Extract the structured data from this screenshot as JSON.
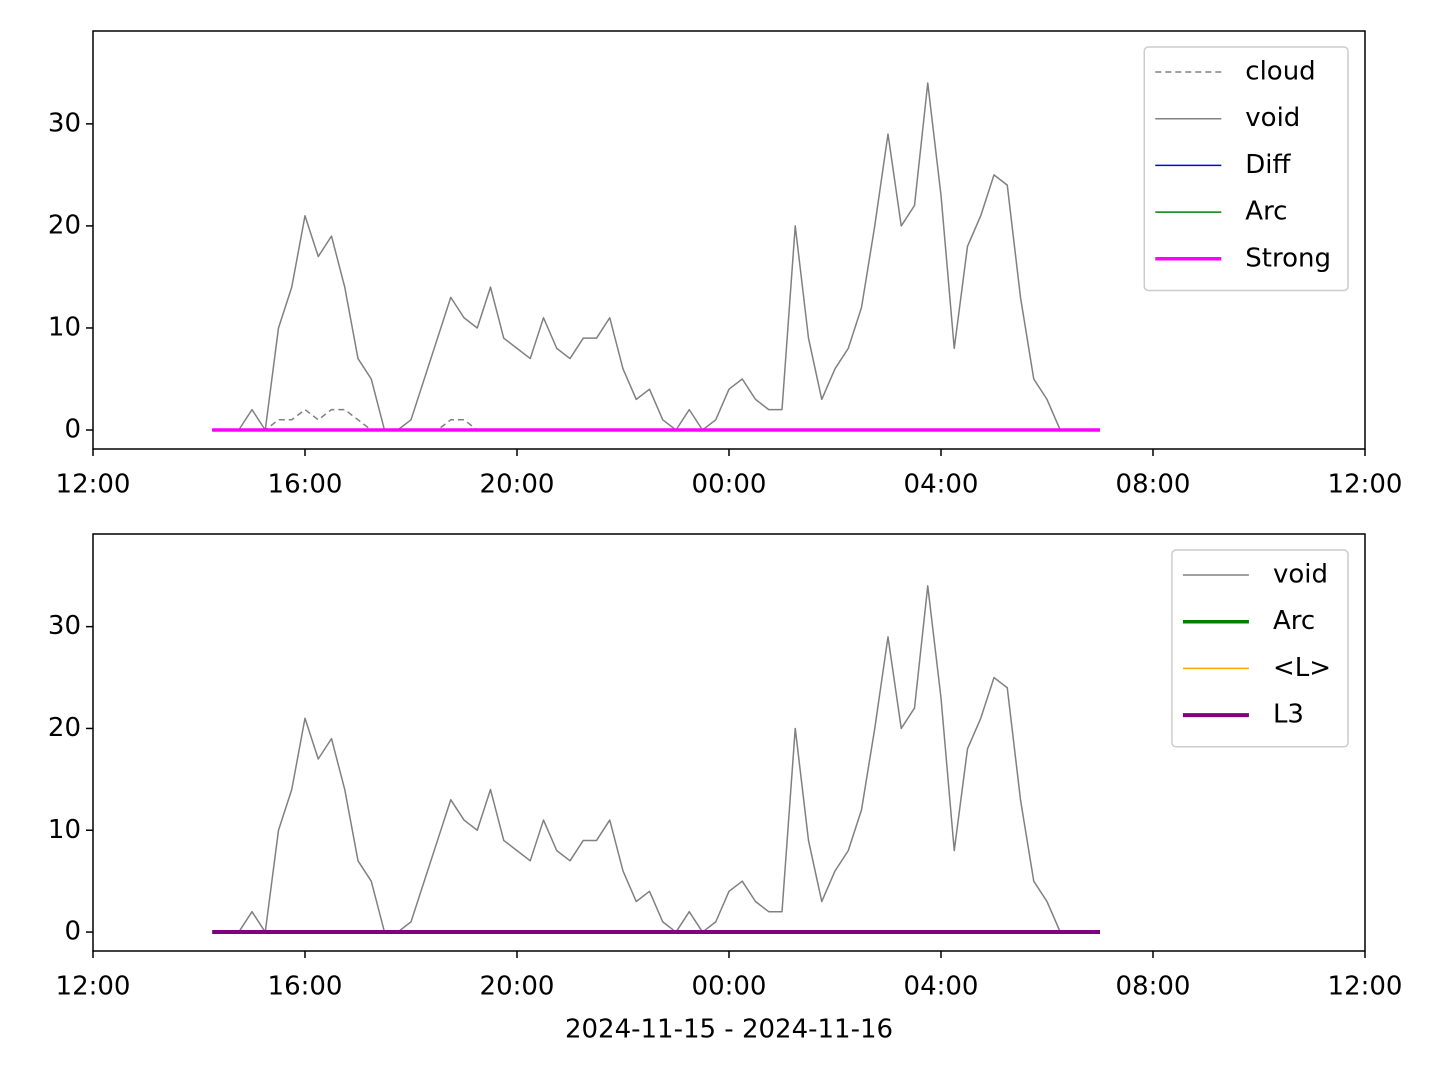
{
  "chart_data": [
    {
      "type": "line",
      "x": [
        "2024-11-15T14:15",
        "2024-11-15T14:30",
        "2024-11-15T14:45",
        "2024-11-15T15:00",
        "2024-11-15T15:15",
        "2024-11-15T15:30",
        "2024-11-15T15:45",
        "2024-11-15T16:00",
        "2024-11-15T16:15",
        "2024-11-15T16:30",
        "2024-11-15T16:45",
        "2024-11-15T17:00",
        "2024-11-15T17:15",
        "2024-11-15T17:30",
        "2024-11-15T17:45",
        "2024-11-15T18:00",
        "2024-11-15T18:15",
        "2024-11-15T18:30",
        "2024-11-15T18:45",
        "2024-11-15T19:00",
        "2024-11-15T19:15",
        "2024-11-15T19:30",
        "2024-11-15T19:45",
        "2024-11-15T20:00",
        "2024-11-15T20:15",
        "2024-11-15T20:30",
        "2024-11-15T20:45",
        "2024-11-15T21:00",
        "2024-11-15T21:15",
        "2024-11-15T21:30",
        "2024-11-15T21:45",
        "2024-11-15T22:00",
        "2024-11-15T22:15",
        "2024-11-15T22:30",
        "2024-11-15T22:45",
        "2024-11-15T23:00",
        "2024-11-15T23:15",
        "2024-11-15T23:30",
        "2024-11-15T23:45",
        "2024-11-16T00:00",
        "2024-11-16T00:15",
        "2024-11-16T00:30",
        "2024-11-16T00:45",
        "2024-11-16T01:00",
        "2024-11-16T01:15",
        "2024-11-16T01:30",
        "2024-11-16T01:45",
        "2024-11-16T02:00",
        "2024-11-16T02:15",
        "2024-11-16T02:30",
        "2024-11-16T02:45",
        "2024-11-16T03:00",
        "2024-11-16T03:15",
        "2024-11-16T03:30",
        "2024-11-16T03:45",
        "2024-11-16T04:00",
        "2024-11-16T04:15",
        "2024-11-16T04:30",
        "2024-11-16T04:45",
        "2024-11-16T05:00",
        "2024-11-16T05:15",
        "2024-11-16T05:30",
        "2024-11-16T05:45",
        "2024-11-16T06:00",
        "2024-11-16T06:15",
        "2024-11-16T06:30",
        "2024-11-16T06:45",
        "2024-11-16T07:00"
      ],
      "series": [
        {
          "name": "cloud",
          "color": "#808080",
          "linestyle": "dashed",
          "linewidth": 1.5,
          "values": [
            0,
            0,
            0,
            0,
            0,
            1,
            1,
            2,
            1,
            2,
            2,
            1,
            0,
            0,
            0,
            0,
            0,
            0,
            1,
            1,
            0,
            0,
            0,
            0,
            0,
            0,
            0,
            0,
            0,
            0,
            0,
            0,
            0,
            0,
            0,
            0,
            0,
            0,
            0,
            0,
            0,
            0,
            0,
            0,
            0,
            0,
            0,
            0,
            0,
            0,
            0,
            0,
            0,
            0,
            0,
            0,
            0,
            0,
            0,
            0,
            0,
            0,
            0,
            0,
            0,
            null,
            null,
            null
          ]
        },
        {
          "name": "void",
          "color": "#808080",
          "linestyle": "solid",
          "linewidth": 1.5,
          "values": [
            0,
            0,
            0,
            2,
            0,
            10,
            14,
            21,
            17,
            19,
            14,
            7,
            5,
            0,
            0,
            1,
            5,
            9,
            13,
            11,
            10,
            14,
            9,
            8,
            7,
            11,
            8,
            7,
            9,
            9,
            11,
            6,
            3,
            4,
            1,
            0,
            2,
            0,
            1,
            4,
            5,
            3,
            2,
            2,
            20,
            9,
            3,
            6,
            8,
            12,
            20,
            29,
            20,
            22,
            34,
            23,
            8,
            18,
            21,
            25,
            24,
            13,
            5,
            3,
            0,
            null,
            null,
            null
          ]
        },
        {
          "name": "Diff",
          "color": "#0000ff",
          "linestyle": "solid",
          "linewidth": 1.5,
          "values": [
            0,
            0,
            0,
            0,
            0,
            0,
            0,
            0,
            0,
            0,
            0,
            0,
            0,
            0,
            0,
            0,
            0,
            0,
            0,
            0,
            0,
            0,
            0,
            0,
            0,
            0,
            0,
            0,
            0,
            0,
            0,
            0,
            0,
            0,
            0,
            0,
            0,
            0,
            0,
            0,
            0,
            0,
            0,
            0,
            0,
            0,
            0,
            0,
            0,
            0,
            0,
            0,
            0,
            0,
            0,
            0,
            0,
            0,
            0,
            0,
            0,
            0,
            0,
            0,
            0,
            0,
            0,
            0
          ]
        },
        {
          "name": "Arc",
          "color": "#008000",
          "linestyle": "solid",
          "linewidth": 1.5,
          "values": [
            0,
            0,
            0,
            0,
            0,
            0,
            0,
            0,
            0,
            0,
            0,
            0,
            0,
            0,
            0,
            0,
            0,
            0,
            0,
            0,
            0,
            0,
            0,
            0,
            0,
            0,
            0,
            0,
            0,
            0,
            0,
            0,
            0,
            0,
            0,
            0,
            0,
            0,
            0,
            0,
            0,
            0,
            0,
            0,
            0,
            0,
            0,
            0,
            0,
            0,
            0,
            0,
            0,
            0,
            0,
            0,
            0,
            0,
            0,
            0,
            0,
            0,
            0,
            0,
            0,
            0,
            0,
            0
          ]
        },
        {
          "name": "Strong",
          "color": "#ff00ff",
          "linestyle": "solid",
          "linewidth": 3.5,
          "values": [
            0,
            0,
            0,
            0,
            0,
            0,
            0,
            0,
            0,
            0,
            0,
            0,
            0,
            0,
            0,
            0,
            0,
            0,
            0,
            0,
            0,
            0,
            0,
            0,
            0,
            0,
            0,
            0,
            0,
            0,
            0,
            0,
            0,
            0,
            0,
            0,
            0,
            0,
            0,
            0,
            0,
            0,
            0,
            0,
            0,
            0,
            0,
            0,
            0,
            0,
            0,
            0,
            0,
            0,
            0,
            0,
            0,
            0,
            0,
            0,
            0,
            0,
            0,
            0,
            0,
            0,
            0,
            0
          ]
        }
      ],
      "xlim": [
        "2024-11-15T12:00",
        "2024-11-16T12:00"
      ],
      "xticks": [
        {
          "value": "2024-11-15T12:00",
          "label": "12:00"
        },
        {
          "value": "2024-11-15T16:00",
          "label": "16:00"
        },
        {
          "value": "2024-11-15T20:00",
          "label": "20:00"
        },
        {
          "value": "2024-11-16T00:00",
          "label": "00:00"
        },
        {
          "value": "2024-11-16T04:00",
          "label": "04:00"
        },
        {
          "value": "2024-11-16T08:00",
          "label": "08:00"
        },
        {
          "value": "2024-11-16T12:00",
          "label": "12:00"
        }
      ],
      "ylim": [
        -1.86,
        39.1
      ],
      "yticks": [
        0,
        10,
        20,
        30
      ],
      "legend": "upper right"
    },
    {
      "type": "line",
      "x": [
        "2024-11-15T14:15",
        "2024-11-15T14:30",
        "2024-11-15T14:45",
        "2024-11-15T15:00",
        "2024-11-15T15:15",
        "2024-11-15T15:30",
        "2024-11-15T15:45",
        "2024-11-15T16:00",
        "2024-11-15T16:15",
        "2024-11-15T16:30",
        "2024-11-15T16:45",
        "2024-11-15T17:00",
        "2024-11-15T17:15",
        "2024-11-15T17:30",
        "2024-11-15T17:45",
        "2024-11-15T18:00",
        "2024-11-15T18:15",
        "2024-11-15T18:30",
        "2024-11-15T18:45",
        "2024-11-15T19:00",
        "2024-11-15T19:15",
        "2024-11-15T19:30",
        "2024-11-15T19:45",
        "2024-11-15T20:00",
        "2024-11-15T20:15",
        "2024-11-15T20:30",
        "2024-11-15T20:45",
        "2024-11-15T21:00",
        "2024-11-15T21:15",
        "2024-11-15T21:30",
        "2024-11-15T21:45",
        "2024-11-15T22:00",
        "2024-11-15T22:15",
        "2024-11-15T22:30",
        "2024-11-15T22:45",
        "2024-11-15T23:00",
        "2024-11-15T23:15",
        "2024-11-15T23:30",
        "2024-11-15T23:45",
        "2024-11-16T00:00",
        "2024-11-16T00:15",
        "2024-11-16T00:30",
        "2024-11-16T00:45",
        "2024-11-16T01:00",
        "2024-11-16T01:15",
        "2024-11-16T01:30",
        "2024-11-16T01:45",
        "2024-11-16T02:00",
        "2024-11-16T02:15",
        "2024-11-16T02:30",
        "2024-11-16T02:45",
        "2024-11-16T03:00",
        "2024-11-16T03:15",
        "2024-11-16T03:30",
        "2024-11-16T03:45",
        "2024-11-16T04:00",
        "2024-11-16T04:15",
        "2024-11-16T04:30",
        "2024-11-16T04:45",
        "2024-11-16T05:00",
        "2024-11-16T05:15",
        "2024-11-16T05:30",
        "2024-11-16T05:45",
        "2024-11-16T06:00",
        "2024-11-16T06:15",
        "2024-11-16T06:30",
        "2024-11-16T06:45",
        "2024-11-16T07:00"
      ],
      "series": [
        {
          "name": "void",
          "color": "#808080",
          "linestyle": "solid",
          "linewidth": 1.5,
          "values": [
            0,
            0,
            0,
            2,
            0,
            10,
            14,
            21,
            17,
            19,
            14,
            7,
            5,
            0,
            0,
            1,
            5,
            9,
            13,
            11,
            10,
            14,
            9,
            8,
            7,
            11,
            8,
            7,
            9,
            9,
            11,
            6,
            3,
            4,
            1,
            0,
            2,
            0,
            1,
            4,
            5,
            3,
            2,
            2,
            20,
            9,
            3,
            6,
            8,
            12,
            20,
            29,
            20,
            22,
            34,
            23,
            8,
            18,
            21,
            25,
            24,
            13,
            5,
            3,
            0,
            null,
            null,
            null
          ]
        },
        {
          "name": "Arc",
          "color": "#008000",
          "linestyle": "solid",
          "linewidth": 3.5,
          "values": [
            0,
            0,
            0,
            0,
            0,
            0,
            0,
            0,
            0,
            0,
            0,
            0,
            0,
            0,
            0,
            0,
            0,
            0,
            0,
            0,
            0,
            0,
            0,
            0,
            0,
            0,
            0,
            0,
            0,
            0,
            0,
            0,
            0,
            0,
            0,
            0,
            0,
            0,
            0,
            0,
            0,
            0,
            0,
            0,
            0,
            0,
            0,
            0,
            0,
            0,
            0,
            0,
            0,
            0,
            0,
            0,
            0,
            0,
            0,
            0,
            0,
            0,
            0,
            0,
            0,
            0,
            0,
            0
          ]
        },
        {
          "name": "<L>",
          "color": "#ffa500",
          "linestyle": "solid",
          "linewidth": 1.5,
          "values": [
            0,
            0,
            0,
            0,
            0,
            0,
            0,
            0,
            0,
            0,
            0,
            0,
            0,
            0,
            0,
            0,
            0,
            0,
            0,
            0,
            0,
            0,
            0,
            0,
            0,
            0,
            0,
            0,
            0,
            0,
            0,
            0,
            0,
            0,
            0,
            0,
            0,
            0,
            0,
            0,
            0,
            0,
            0,
            0,
            0,
            0,
            0,
            0,
            0,
            0,
            0,
            0,
            0,
            0,
            0,
            0,
            0,
            0,
            0,
            0,
            0,
            0,
            0,
            0,
            0,
            0,
            0,
            0
          ]
        },
        {
          "name": "L3",
          "color": "#800080",
          "linestyle": "solid",
          "linewidth": 4,
          "values": [
            0,
            0,
            0,
            0,
            0,
            0,
            0,
            0,
            0,
            0,
            0,
            0,
            0,
            0,
            0,
            0,
            0,
            0,
            0,
            0,
            0,
            0,
            0,
            0,
            0,
            0,
            0,
            0,
            0,
            0,
            0,
            0,
            0,
            0,
            0,
            0,
            0,
            0,
            0,
            0,
            0,
            0,
            0,
            0,
            0,
            0,
            0,
            0,
            0,
            0,
            0,
            0,
            0,
            0,
            0,
            0,
            0,
            0,
            0,
            0,
            0,
            0,
            0,
            0,
            0,
            0,
            0,
            0
          ]
        }
      ],
      "xlim": [
        "2024-11-15T12:00",
        "2024-11-16T12:00"
      ],
      "xticks": [
        {
          "value": "2024-11-15T12:00",
          "label": "12:00"
        },
        {
          "value": "2024-11-15T16:00",
          "label": "16:00"
        },
        {
          "value": "2024-11-15T20:00",
          "label": "20:00"
        },
        {
          "value": "2024-11-16T00:00",
          "label": "00:00"
        },
        {
          "value": "2024-11-16T04:00",
          "label": "04:00"
        },
        {
          "value": "2024-11-16T08:00",
          "label": "08:00"
        },
        {
          "value": "2024-11-16T12:00",
          "label": "12:00"
        }
      ],
      "ylim": [
        -1.86,
        39.1
      ],
      "yticks": [
        0,
        10,
        20,
        30
      ],
      "legend": "upper right",
      "xlabel": "2024-11-15 - 2024-11-16"
    }
  ]
}
